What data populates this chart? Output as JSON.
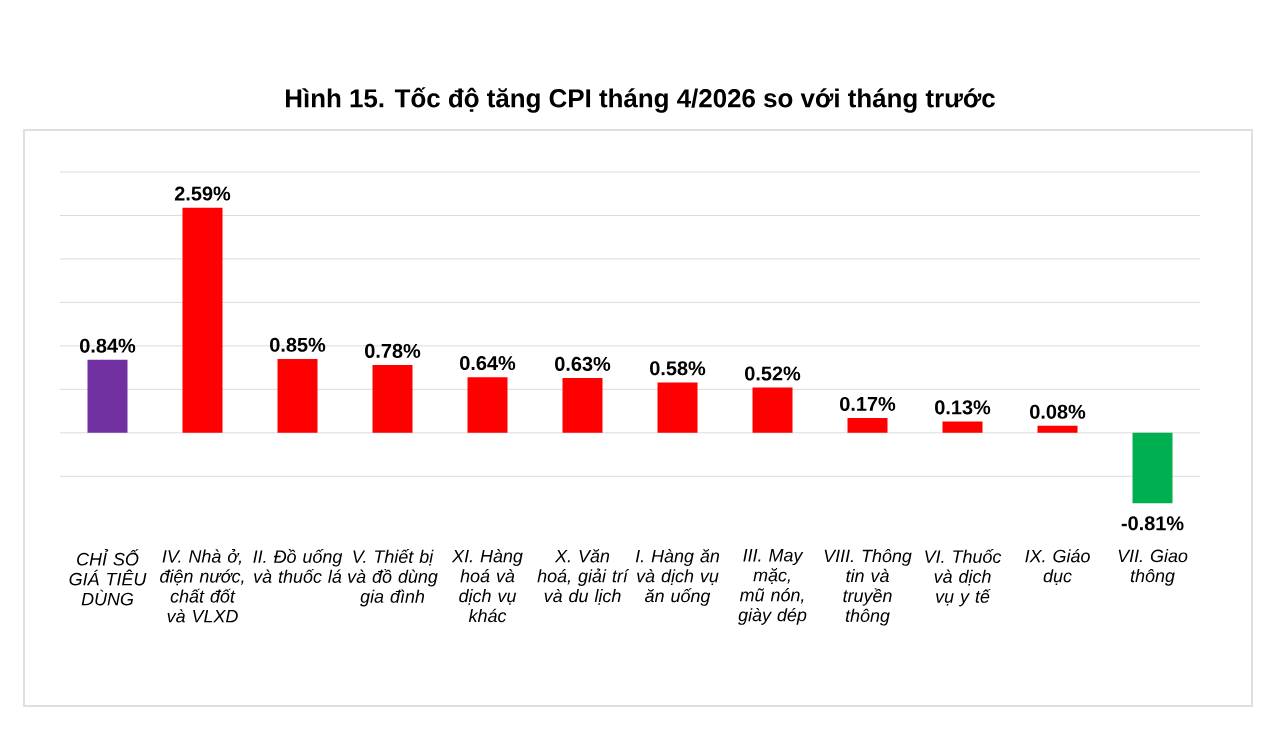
{
  "chart_data": {
    "type": "bar",
    "title": "Hình 15. Tốc độ tăng CPI tháng 4/2026 so với tháng trước",
    "categories": [
      "CHỈ SỐ GIÁ TIÊU DÙNG",
      "IV. Nhà ở, điện nước, chất đốt và VLXD",
      "II. Đồ uống và thuốc lá",
      "V. Thiết bị và đồ dùng gia đình",
      "XI. Hàng hoá và dịch vụ khác",
      "X. Văn hoá, giải trí và du lịch",
      "I. Hàng ăn và dịch vụ ăn uống",
      "III. May mặc, mũ nón, giày dép",
      "VIII. Thông tin và truyền thông",
      "VI. Thuốc và dịch vụ y tế",
      "IX. Giáo dục",
      "VII. Giao thông"
    ],
    "values": [
      0.84,
      2.59,
      0.85,
      0.78,
      0.64,
      0.63,
      0.58,
      0.52,
      0.17,
      0.13,
      0.08,
      -0.81
    ],
    "value_labels": [
      "0.84%",
      "2.59%",
      "0.85%",
      "0.78%",
      "0.64%",
      "0.63%",
      "0.58%",
      "0.52%",
      "0.17%",
      "0.13%",
      "0.08%",
      "-0.81%"
    ],
    "colors": [
      "#7030a0",
      "#ff0000",
      "#ff0000",
      "#ff0000",
      "#ff0000",
      "#ff0000",
      "#ff0000",
      "#ff0000",
      "#ff0000",
      "#ff0000",
      "#ff0000",
      "#00b050"
    ],
    "yticks": [
      {
        "value": -0.5,
        "label": null
      },
      {
        "value": 0,
        "label": null
      },
      {
        "value": 0.5,
        "label": null
      },
      {
        "value": 1,
        "label": null
      },
      {
        "value": 1.5,
        "label": null
      },
      {
        "value": 2,
        "label": null
      },
      {
        "value": 2.5,
        "label": null
      },
      {
        "value": 3,
        "label": null
      }
    ],
    "tick_labels": "x",
    "grid": "y"
  }
}
